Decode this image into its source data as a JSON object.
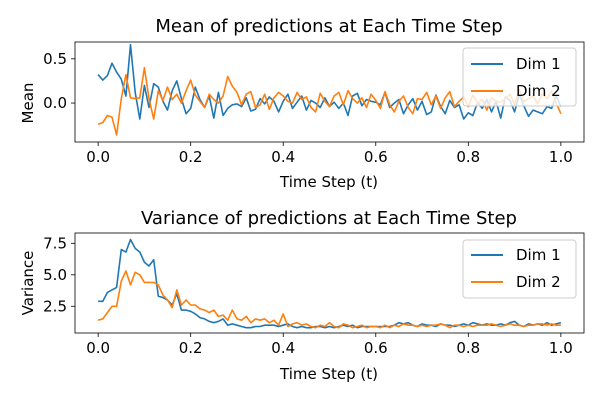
{
  "chart_data": [
    {
      "type": "line",
      "title": "Mean of predictions at Each Time Step",
      "xlabel": "Time Step (t)",
      "ylabel": "Mean",
      "xlim": [
        -0.05,
        1.05
      ],
      "ylim": [
        -0.44,
        0.69
      ],
      "xticks": [
        0.0,
        0.2,
        0.4,
        0.6,
        0.8,
        1.0
      ],
      "xtick_labels": [
        "0.0",
        "0.2",
        "0.4",
        "0.6",
        "0.8",
        "1.0"
      ],
      "yticks": [
        0.5,
        0.0
      ],
      "ytick_labels": [
        "0.5",
        "0.0"
      ],
      "legend_position": "upper right",
      "series": [
        {
          "name": "Dim 1",
          "color": "#1f77b4",
          "x": [
            0.0,
            0.01,
            0.02,
            0.03,
            0.04,
            0.05,
            0.06,
            0.07,
            0.08,
            0.09,
            0.1,
            0.11,
            0.12,
            0.13,
            0.14,
            0.15,
            0.16,
            0.17,
            0.18,
            0.19,
            0.2,
            0.21,
            0.22,
            0.23,
            0.24,
            0.25,
            0.26,
            0.27,
            0.28,
            0.29,
            0.3,
            0.31,
            0.32,
            0.33,
            0.34,
            0.35,
            0.36,
            0.37,
            0.38,
            0.39,
            0.4,
            0.41,
            0.42,
            0.43,
            0.44,
            0.45,
            0.46,
            0.47,
            0.48,
            0.49,
            0.5,
            0.51,
            0.52,
            0.53,
            0.54,
            0.55,
            0.56,
            0.57,
            0.58,
            0.59,
            0.6,
            0.61,
            0.62,
            0.63,
            0.64,
            0.65,
            0.66,
            0.67,
            0.68,
            0.69,
            0.7,
            0.71,
            0.72,
            0.73,
            0.74,
            0.75,
            0.76,
            0.77,
            0.78,
            0.79,
            0.8,
            0.81,
            0.82,
            0.83,
            0.84,
            0.85,
            0.86,
            0.87,
            0.88,
            0.89,
            0.9,
            0.91,
            0.92,
            0.93,
            0.94,
            0.95,
            0.96,
            0.97,
            0.98,
            0.99,
            1.0
          ],
          "values": [
            0.32,
            0.26,
            0.31,
            0.45,
            0.35,
            0.27,
            0.08,
            0.66,
            0.12,
            -0.18,
            0.2,
            -0.05,
            0.22,
            0.18,
            0.02,
            -0.08,
            0.14,
            0.25,
            0.05,
            -0.12,
            -0.06,
            0.18,
            0.04,
            -0.05,
            0.08,
            -0.17,
            0.12,
            -0.14,
            -0.06,
            -0.02,
            -0.01,
            -0.04,
            0.06,
            -0.09,
            -0.07,
            0.05,
            -0.01,
            0.07,
            0.02,
            -0.1,
            0.02,
            0.1,
            -0.06,
            0.01,
            0.08,
            -0.08,
            0.03,
            0.0,
            -0.05,
            0.06,
            -0.04,
            0.01,
            -0.06,
            0.0,
            -0.14,
            0.08,
            0.11,
            -0.03,
            0.04,
            0.02,
            0.01,
            -0.02,
            0.12,
            -0.05,
            0.0,
            0.04,
            -0.12,
            -0.02,
            0.05,
            -0.08,
            0.02,
            -0.13,
            -0.1,
            0.09,
            -0.04,
            -0.12,
            0.03,
            -0.05,
            -0.02,
            -0.18,
            -0.11,
            -0.14,
            0.01,
            -0.06,
            0.04,
            -0.1,
            0.02,
            -0.17,
            0.07,
            0.03,
            -0.1,
            0.1,
            -0.03,
            -0.15,
            -0.08,
            -0.1,
            -0.12,
            -0.04,
            -0.06,
            0.08,
            -0.04
          ]
        },
        {
          "name": "Dim 2",
          "color": "#ff7f0e",
          "x": [
            0.0,
            0.01,
            0.02,
            0.03,
            0.04,
            0.05,
            0.06,
            0.07,
            0.08,
            0.09,
            0.1,
            0.11,
            0.12,
            0.13,
            0.14,
            0.15,
            0.16,
            0.17,
            0.18,
            0.19,
            0.2,
            0.21,
            0.22,
            0.23,
            0.24,
            0.25,
            0.26,
            0.27,
            0.28,
            0.29,
            0.3,
            0.31,
            0.32,
            0.33,
            0.34,
            0.35,
            0.36,
            0.37,
            0.38,
            0.39,
            0.4,
            0.41,
            0.42,
            0.43,
            0.44,
            0.45,
            0.46,
            0.47,
            0.48,
            0.49,
            0.5,
            0.51,
            0.52,
            0.53,
            0.54,
            0.55,
            0.56,
            0.57,
            0.58,
            0.59,
            0.6,
            0.61,
            0.62,
            0.63,
            0.64,
            0.65,
            0.66,
            0.67,
            0.68,
            0.69,
            0.7,
            0.71,
            0.72,
            0.73,
            0.74,
            0.75,
            0.76,
            0.77,
            0.78,
            0.79,
            0.8,
            0.81,
            0.82,
            0.83,
            0.84,
            0.85,
            0.86,
            0.87,
            0.88,
            0.89,
            0.9,
            0.91,
            0.92,
            0.93,
            0.94,
            0.95,
            0.96,
            0.97,
            0.98,
            0.99,
            1.0
          ],
          "values": [
            -0.24,
            -0.22,
            -0.14,
            -0.16,
            -0.36,
            0.05,
            0.32,
            0.06,
            0.05,
            0.06,
            0.4,
            0.05,
            -0.18,
            0.14,
            0.03,
            0.18,
            0.04,
            0.1,
            0.0,
            0.14,
            0.26,
            0.09,
            0.02,
            -0.05,
            0.1,
            0.04,
            0.0,
            0.08,
            0.3,
            0.19,
            0.12,
            -0.02,
            0.1,
            0.13,
            -0.05,
            -0.02,
            0.1,
            -0.07,
            0.06,
            0.12,
            0.08,
            0.02,
            0.0,
            0.12,
            0.04,
            0.07,
            -0.05,
            -0.1,
            0.11,
            0.02,
            -0.04,
            0.08,
            0.12,
            -0.02,
            0.14,
            0.05,
            0.0,
            0.06,
            -0.05,
            0.1,
            0.03,
            -0.06,
            0.13,
            -0.02,
            -0.1,
            0.02,
            0.08,
            -0.05,
            -0.12,
            0.05,
            0.04,
            0.12,
            -0.02,
            0.08,
            -0.06,
            0.06,
            0.13,
            -0.04,
            0.02,
            0.07,
            -0.04,
            0.09,
            0.0,
            0.04,
            -0.08,
            0.06,
            0.02,
            0.01,
            0.05,
            0.1,
            -0.02,
            0.15,
            0.02,
            0.05,
            0.08,
            -0.01,
            0.11,
            0.05,
            0.14,
            0.0,
            -0.12
          ]
        }
      ]
    },
    {
      "type": "line",
      "title": "Variance of predictions at Each Time Step",
      "xlabel": "Time Step (t)",
      "ylabel": "Variance",
      "xlim": [
        -0.05,
        1.05
      ],
      "ylim": [
        0.38,
        8.32
      ],
      "xticks": [
        0.0,
        0.2,
        0.4,
        0.6,
        0.8,
        1.0
      ],
      "xtick_labels": [
        "0.0",
        "0.2",
        "0.4",
        "0.6",
        "0.8",
        "1.0"
      ],
      "yticks": [
        7.5,
        5.0,
        2.5
      ],
      "ytick_labels": [
        "7.5",
        "5.0",
        "2.5"
      ],
      "legend_position": "upper right",
      "series": [
        {
          "name": "Dim 1",
          "color": "#1f77b4",
          "x": [
            0.0,
            0.01,
            0.02,
            0.03,
            0.04,
            0.05,
            0.06,
            0.07,
            0.08,
            0.09,
            0.1,
            0.11,
            0.12,
            0.13,
            0.14,
            0.15,
            0.16,
            0.17,
            0.18,
            0.19,
            0.2,
            0.21,
            0.22,
            0.23,
            0.24,
            0.25,
            0.26,
            0.27,
            0.28,
            0.29,
            0.3,
            0.31,
            0.32,
            0.33,
            0.34,
            0.35,
            0.36,
            0.37,
            0.38,
            0.39,
            0.4,
            0.41,
            0.42,
            0.43,
            0.44,
            0.45,
            0.46,
            0.47,
            0.48,
            0.49,
            0.5,
            0.51,
            0.52,
            0.53,
            0.54,
            0.55,
            0.56,
            0.57,
            0.58,
            0.59,
            0.6,
            0.61,
            0.62,
            0.63,
            0.64,
            0.65,
            0.66,
            0.67,
            0.68,
            0.69,
            0.7,
            0.71,
            0.72,
            0.73,
            0.74,
            0.75,
            0.76,
            0.77,
            0.78,
            0.79,
            0.8,
            0.81,
            0.82,
            0.83,
            0.84,
            0.85,
            0.86,
            0.87,
            0.88,
            0.89,
            0.9,
            0.91,
            0.92,
            0.93,
            0.94,
            0.95,
            0.96,
            0.97,
            0.98,
            0.99,
            1.0
          ],
          "values": [
            2.9,
            2.9,
            3.6,
            3.8,
            4.0,
            7.0,
            6.8,
            7.8,
            7.1,
            6.8,
            6.0,
            5.7,
            6.2,
            3.3,
            3.2,
            3.0,
            2.6,
            3.5,
            2.2,
            2.2,
            2.1,
            1.9,
            1.6,
            1.5,
            1.3,
            1.2,
            1.3,
            1.5,
            1.0,
            1.1,
            1.0,
            0.9,
            0.8,
            0.8,
            0.9,
            0.9,
            1.0,
            1.0,
            1.0,
            0.9,
            1.0,
            1.1,
            0.9,
            0.8,
            0.9,
            0.8,
            0.8,
            0.9,
            0.9,
            0.8,
            0.9,
            0.8,
            0.9,
            1.0,
            0.9,
            1.0,
            0.8,
            0.9,
            0.9,
            0.9,
            0.9,
            0.9,
            0.9,
            0.9,
            1.0,
            1.2,
            1.1,
            1.2,
            1.0,
            0.9,
            1.1,
            1.0,
            1.0,
            0.9,
            1.1,
            1.0,
            1.0,
            0.9,
            1.0,
            1.1,
            1.0,
            1.2,
            1.1,
            1.0,
            1.1,
            1.0,
            1.0,
            1.1,
            1.0,
            1.2,
            1.3,
            1.0,
            0.9,
            1.1,
            1.0,
            1.1,
            1.0,
            1.2,
            1.0,
            1.1,
            1.2
          ]
        },
        {
          "name": "Dim 2",
          "color": "#ff7f0e",
          "x": [
            0.0,
            0.01,
            0.02,
            0.03,
            0.04,
            0.05,
            0.06,
            0.07,
            0.08,
            0.09,
            0.1,
            0.11,
            0.12,
            0.13,
            0.14,
            0.15,
            0.16,
            0.17,
            0.18,
            0.19,
            0.2,
            0.21,
            0.22,
            0.23,
            0.24,
            0.25,
            0.26,
            0.27,
            0.28,
            0.29,
            0.3,
            0.31,
            0.32,
            0.33,
            0.34,
            0.35,
            0.36,
            0.37,
            0.38,
            0.39,
            0.4,
            0.41,
            0.42,
            0.43,
            0.44,
            0.45,
            0.46,
            0.47,
            0.48,
            0.49,
            0.5,
            0.51,
            0.52,
            0.53,
            0.54,
            0.55,
            0.56,
            0.57,
            0.58,
            0.59,
            0.6,
            0.61,
            0.62,
            0.63,
            0.64,
            0.65,
            0.66,
            0.67,
            0.68,
            0.69,
            0.7,
            0.71,
            0.72,
            0.73,
            0.74,
            0.75,
            0.76,
            0.77,
            0.78,
            0.79,
            0.8,
            0.81,
            0.82,
            0.83,
            0.84,
            0.85,
            0.86,
            0.87,
            0.88,
            0.89,
            0.9,
            0.91,
            0.92,
            0.93,
            0.94,
            0.95,
            0.96,
            0.97,
            0.98,
            0.99,
            1.0
          ],
          "values": [
            1.4,
            1.5,
            2.0,
            2.5,
            2.5,
            4.5,
            5.3,
            4.2,
            5.2,
            5.0,
            4.4,
            4.4,
            4.4,
            4.2,
            3.4,
            3.0,
            2.4,
            3.8,
            2.6,
            3.0,
            2.6,
            2.6,
            2.3,
            2.2,
            2.0,
            2.2,
            1.7,
            1.8,
            1.4,
            2.2,
            1.5,
            1.4,
            1.7,
            1.2,
            1.5,
            1.4,
            1.5,
            1.2,
            1.4,
            1.0,
            1.9,
            0.9,
            1.1,
            1.2,
            1.0,
            1.1,
            0.9,
            0.8,
            1.0,
            0.9,
            1.2,
            0.9,
            0.8,
            1.1,
            1.0,
            0.8,
            0.9,
            1.0,
            0.8,
            0.9,
            0.9,
            0.8,
            1.0,
            0.8,
            1.0,
            0.9,
            1.1,
            1.0,
            1.0,
            0.9,
            1.0,
            0.9,
            1.0,
            1.0,
            1.1,
            1.0,
            0.8,
            1.0,
            1.0,
            0.9,
            1.0,
            0.9,
            1.0,
            1.0,
            1.0,
            1.1,
            1.0,
            0.9,
            1.0,
            1.1,
            1.0,
            1.0,
            0.9,
            1.0,
            1.0,
            1.1,
            1.1,
            1.0,
            1.1,
            1.0,
            1.0
          ]
        }
      ]
    }
  ]
}
